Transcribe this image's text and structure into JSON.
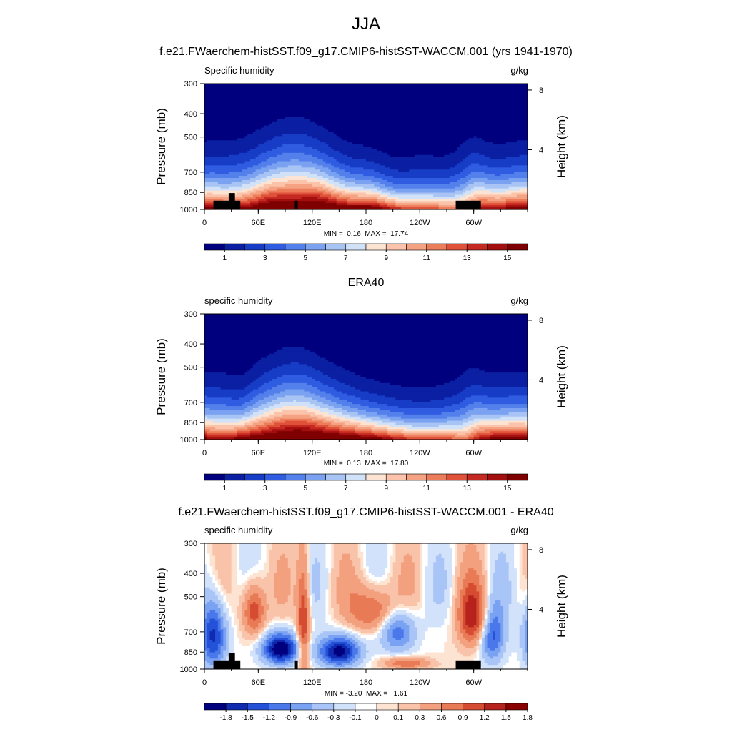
{
  "title": "JJA",
  "colors": {
    "full_field_palette": [
      "#00007f",
      "#0b1fa3",
      "#173cc6",
      "#2f5ce0",
      "#5380ea",
      "#7ba2f0",
      "#a7c4f4",
      "#d1e1f8",
      "#fde4d2",
      "#fac3aa",
      "#f5a282",
      "#ec7d5b",
      "#e0513a",
      "#c52a22",
      "#a30e0f",
      "#7e0000"
    ],
    "diff_palette": [
      "#00007f",
      "#0f2bb0",
      "#2352d8",
      "#4a78ea",
      "#7aa2f2",
      "#a9c4f6",
      "#d2e2fa",
      "#ffffff",
      "#fde4d2",
      "#f9c3aa",
      "#f3a07f",
      "#e97a56",
      "#d64c33",
      "#b5231c",
      "#8a0000"
    ]
  },
  "panels": [
    {
      "title": "f.e21.FWaerchem-histSST.f09_g17.CMIP6-histSST-WACCM.001 (yrs 1941-1970)",
      "left_string": "Specific humidity",
      "right_string": "g/kg",
      "y_label": "Pressure (mb)",
      "right_axis_label": "Height (km)",
      "min_max": "MIN =  0.16  MAX =  17.74",
      "colorbar_labels": [
        "1",
        "3",
        "5",
        "7",
        "9",
        "11",
        "13",
        "15"
      ]
    },
    {
      "title": "ERA40",
      "left_string": "specific humidity",
      "right_string": "g/kg",
      "y_label": "Pressure (mb)",
      "right_axis_label": "Height (km)",
      "min_max": "MIN =  0.13  MAX =  17.80",
      "colorbar_labels": [
        "1",
        "3",
        "5",
        "7",
        "9",
        "11",
        "13",
        "15"
      ]
    },
    {
      "title": "f.e21.FWaerchem-histSST.f09_g17.CMIP6-histSST-WACCM.001 - ERA40",
      "left_string": "specific humidity",
      "right_string": "g/kg",
      "y_label": "Pressure (mb)",
      "right_axis_label": "Height (km)",
      "min_max": "MIN = -3.20  MAX =   1.61",
      "colorbar_labels": [
        "-1.8",
        "-1.5",
        "-1.2",
        "-0.9",
        "-0.6",
        "-0.3",
        "-0.1",
        "0",
        "0.1",
        "0.3",
        "0.6",
        "0.9",
        "1.2",
        "1.5",
        "1.8"
      ]
    }
  ],
  "chart_data": [
    {
      "type": "heatmap",
      "title": "f.e21.FWaerchem-histSST.f09_g17.CMIP6-histSST-WACCM.001 (yrs 1941-1970)",
      "field": "Specific humidity",
      "units": "g/kg",
      "ylabel": "Pressure (mb)",
      "y2label": "Height (km)",
      "x_ticks": [
        "0",
        "60E",
        "120E",
        "180",
        "120W",
        "60W"
      ],
      "x_tick_lon": [
        0,
        60,
        120,
        180,
        240,
        300
      ],
      "xlim": [
        0,
        360
      ],
      "y_ticks": [
        300,
        400,
        500,
        700,
        850,
        1000
      ],
      "ylim": [
        1000,
        300
      ],
      "y2_ticks": [
        4,
        8
      ],
      "levels": [
        1,
        2,
        3,
        4,
        5,
        6,
        7,
        8,
        9,
        10,
        11,
        12,
        13,
        14,
        15
      ],
      "colorbar_labels": [
        1,
        3,
        5,
        7,
        9,
        11,
        13,
        15
      ],
      "min": 0.16,
      "max": 17.74,
      "topography": [
        [
          10,
          40,
          920
        ],
        [
          27,
          34,
          855
        ],
        [
          100,
          104,
          920
        ],
        [
          280,
          308,
          920
        ]
      ],
      "field_kind": "full"
    },
    {
      "type": "heatmap",
      "title": "ERA40",
      "field": "specific humidity",
      "units": "g/kg",
      "ylabel": "Pressure (mb)",
      "y2label": "Height (km)",
      "x_ticks": [
        "0",
        "60E",
        "120E",
        "180",
        "120W",
        "60W"
      ],
      "x_tick_lon": [
        0,
        60,
        120,
        180,
        240,
        300
      ],
      "xlim": [
        0,
        360
      ],
      "y_ticks": [
        300,
        400,
        500,
        700,
        850,
        1000
      ],
      "ylim": [
        1000,
        300
      ],
      "y2_ticks": [
        4,
        8
      ],
      "levels": [
        1,
        2,
        3,
        4,
        5,
        6,
        7,
        8,
        9,
        10,
        11,
        12,
        13,
        14,
        15
      ],
      "colorbar_labels": [
        1,
        3,
        5,
        7,
        9,
        11,
        13,
        15
      ],
      "min": 0.13,
      "max": 17.8,
      "topography": [],
      "field_kind": "full"
    },
    {
      "type": "heatmap",
      "title": "f.e21.FWaerchem-histSST.f09_g17.CMIP6-histSST-WACCM.001 - ERA40",
      "field": "specific humidity",
      "units": "g/kg",
      "ylabel": "Pressure (mb)",
      "y2label": "Height (km)",
      "x_ticks": [
        "0",
        "60E",
        "120E",
        "180",
        "120W",
        "60W"
      ],
      "x_tick_lon": [
        0,
        60,
        120,
        180,
        240,
        300
      ],
      "xlim": [
        0,
        360
      ],
      "y_ticks": [
        300,
        400,
        500,
        700,
        850,
        1000
      ],
      "ylim": [
        1000,
        300
      ],
      "y2_ticks": [
        4,
        8
      ],
      "levels": [
        -1.8,
        -1.5,
        -1.2,
        -0.9,
        -0.6,
        -0.3,
        -0.1,
        0,
        0.1,
        0.3,
        0.6,
        0.9,
        1.2,
        1.5,
        1.8
      ],
      "colorbar_labels": [
        -1.8,
        -1.5,
        -1.2,
        -0.9,
        -0.6,
        -0.3,
        -0.1,
        0,
        0.1,
        0.3,
        0.6,
        0.9,
        1.2,
        1.5,
        1.8
      ],
      "min": -3.2,
      "max": 1.61,
      "topography": [
        [
          10,
          40,
          920
        ],
        [
          27,
          34,
          855
        ],
        [
          100,
          104,
          920
        ],
        [
          280,
          308,
          920
        ]
      ],
      "field_kind": "diff"
    }
  ]
}
